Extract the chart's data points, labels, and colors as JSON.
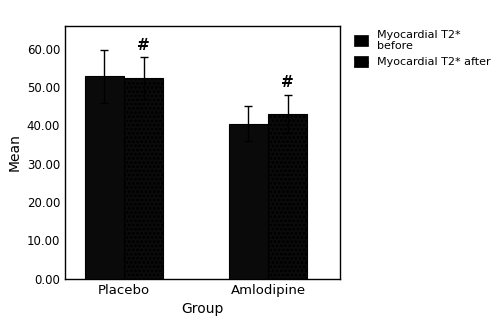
{
  "groups": [
    "Placebo",
    "Amlodipine"
  ],
  "before_values": [
    52.8,
    40.5
  ],
  "after_values": [
    52.3,
    43.0
  ],
  "before_errors": [
    7.0,
    4.5
  ],
  "after_errors": [
    5.5,
    5.0
  ],
  "ylabel": "Mean",
  "xlabel": "Group",
  "ylim": [
    0,
    66
  ],
  "yticks": [
    0,
    10,
    20,
    30,
    40,
    50,
    60
  ],
  "ytick_labels": [
    "0.00",
    "10.00",
    "20.00",
    "30.00",
    "40.00",
    "50.00",
    "60.00"
  ],
  "bar_width": 0.3,
  "group_positions": [
    1.0,
    2.1
  ],
  "before_color": "#0a0a0a",
  "after_color": "#0a0a0a",
  "legend_before": "Myocardial T2*\nbefore",
  "legend_after": "Myocardial T2* after",
  "hash_label": "#",
  "background_color": "#ffffff",
  "fig_width": 5.0,
  "fig_height": 3.24,
  "dpi": 100
}
